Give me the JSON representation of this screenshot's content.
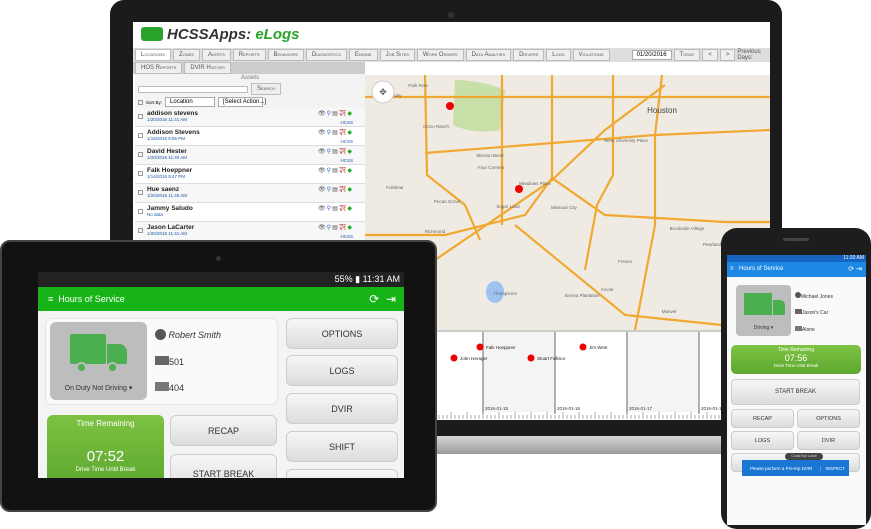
{
  "web": {
    "app_title_prefix": "HCSSApps: ",
    "app_title_suffix": "eLogs",
    "tabs": [
      "Locations",
      "Zones",
      "Alerts",
      "Reports",
      "Behaviors",
      "Diagnostics",
      "Engine",
      "Job Sites",
      "Work Orders",
      "Data Analysis",
      "Drivers",
      "Logs",
      "Violations"
    ],
    "date": "01/20/2016",
    "today": "Today",
    "prev": "<",
    "next": ">",
    "previous_days": "Previous Days:",
    "tabs2": [
      "HOS Reports",
      "DVIR History"
    ],
    "assets": {
      "header": "Assets",
      "search": "Search",
      "sort_by": "Sort By:",
      "sort_value": "Location",
      "action_value": "[Select Action...]",
      "rows": [
        {
          "name": "addison stevens",
          "date": "1/20/2016 11:41 AM",
          "org": "HCSS"
        },
        {
          "name": "Addison Stevens",
          "date": "1/15/2016 5:56 PM",
          "org": "HCSS"
        },
        {
          "name": "David Hester",
          "date": "1/20/2016 11:40 AM",
          "org": "HCSS"
        },
        {
          "name": "Falk Hoeppner",
          "date": "1/14/2016 9:47 PM",
          "org": ""
        },
        {
          "name": "Hue saenz",
          "date": "1/20/2016 11:40 AM",
          "org": ""
        },
        {
          "name": "Jammy Saludo",
          "date": "No data",
          "org": ""
        },
        {
          "name": "Jason LaCarter",
          "date": "1/20/2016 11:41 AM",
          "org": "HCSS"
        }
      ]
    },
    "map": {
      "labels": [
        "Houston",
        "Park Row",
        "Katy",
        "Cinco Ranch",
        "Mission Bend",
        "Four Corners",
        "Fulshear",
        "Pecan Grove",
        "Sugar Land",
        "Meadows Place",
        "Missouri City",
        "West University Place",
        "Richmond",
        "Brookside Village",
        "Pearland",
        "Fresno",
        "Arcola",
        "Sienna Plantation",
        "Thompsons",
        "Manvel"
      ]
    },
    "timeline": {
      "dates": [
        "2016-01-15",
        "2016-01-16",
        "2016-01-17",
        "2016-01-18"
      ],
      "events": [
        "John Iverager",
        "Falk Hoeppner",
        "Stuart Falknor",
        "Jim West"
      ]
    }
  },
  "tablet": {
    "status_time": "11:31 AM",
    "battery": "55%",
    "title": "Hours of Service",
    "status": "On Duty Not Driving",
    "driver": "Robert Smith",
    "truck": "501",
    "trailer": "404",
    "time_remaining_label": "Time Remaining",
    "time": "07:52",
    "time_sub": "Drive Time Until Break",
    "buttons": {
      "recap": "RECAP",
      "start_break": "START BREAK",
      "options": "OPTIONS",
      "logs": "LOGS",
      "dvir": "DVIR",
      "shift": "SHIFT"
    },
    "accent": "#16b416"
  },
  "phone": {
    "status_time": "11:20 AM",
    "title": "Hours of Service",
    "status": "Driving",
    "driver": "Michael Jones",
    "truck": "Jason's Car",
    "trailer": "Alone",
    "time_remaining_label": "Time Remaining",
    "time": "07:56",
    "time_sub": "Drive Time Until Break",
    "buttons": {
      "start_break": "START BREAK",
      "recap": "RECAP",
      "options": "OPTIONS",
      "logs": "LOGS",
      "dvir": "DVIR"
    },
    "toast": "Could Not Load!",
    "snackbar": "Please perform a Pre-trip DVIR",
    "snackbar_action": "INSPECT",
    "accent": "#1e88e5"
  }
}
